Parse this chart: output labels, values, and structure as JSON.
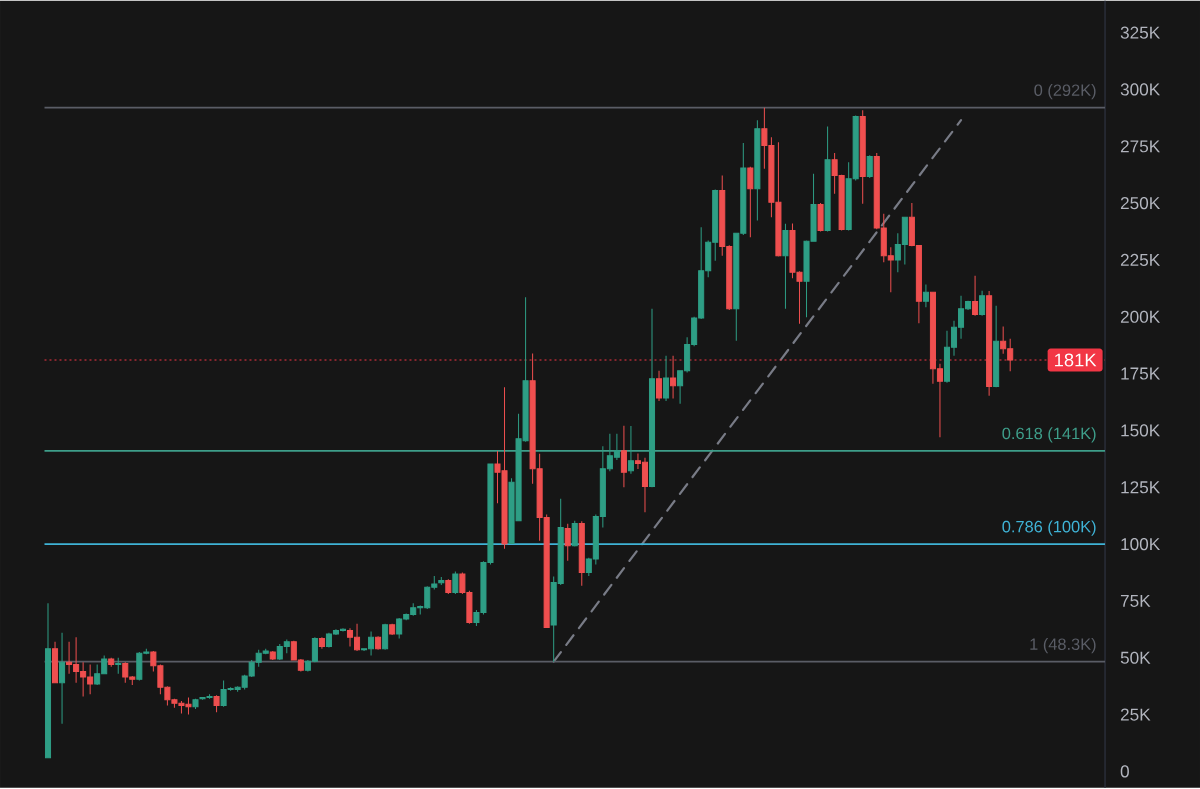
{
  "chart_data": {
    "type": "candlestick",
    "categories": [
      null,
      null,
      null,
      null,
      null,
      null,
      null,
      null,
      null,
      null,
      null,
      null,
      null,
      null,
      null,
      null,
      null,
      null,
      null,
      null,
      null,
      null,
      null,
      null,
      null,
      null,
      null,
      null,
      null,
      null,
      null,
      null,
      null,
      null,
      null,
      null,
      null,
      null,
      null,
      null,
      null,
      null,
      null,
      null,
      null,
      null,
      null,
      null,
      null,
      null,
      null,
      null,
      null,
      null,
      null,
      null,
      null,
      null,
      null,
      null,
      null,
      null,
      null,
      null,
      null,
      null,
      null,
      null,
      null,
      null,
      null,
      null,
      null,
      null,
      null,
      null,
      null,
      null,
      null,
      null,
      null,
      null,
      null,
      null,
      null,
      null,
      null,
      null,
      null,
      null,
      null,
      null,
      null,
      null,
      null,
      null,
      null,
      null,
      null,
      null,
      null,
      null,
      null,
      null,
      null,
      null,
      null,
      null,
      null,
      null,
      null,
      null,
      null,
      null,
      null,
      null,
      null,
      null,
      null,
      null,
      null,
      null,
      null,
      null,
      null,
      null,
      null,
      null,
      null,
      null,
      null,
      null,
      null,
      null,
      null,
      null,
      null,
      null,
      null,
      null,
      null,
      null,
      null,
      null,
      null,
      null,
      null,
      null,
      null,
      null,
      null
    ],
    "ohlc": [
      [
        6,
        74,
        6,
        54
      ],
      [
        54,
        57,
        39,
        39
      ],
      [
        39,
        61,
        21,
        48
      ],
      [
        48,
        57,
        43,
        47
      ],
      [
        47,
        59,
        39,
        44
      ],
      [
        44,
        48,
        33,
        41.5
      ],
      [
        41.5,
        47,
        34,
        38.5
      ],
      [
        38.5,
        47,
        38,
        43
      ],
      [
        43,
        51,
        43,
        49.5
      ],
      [
        49.5,
        50,
        46,
        47
      ],
      [
        47,
        50,
        43,
        47.5
      ],
      [
        47.5,
        48,
        39,
        41.5
      ],
      [
        41.5,
        42,
        38,
        40.5
      ],
      [
        40.5,
        52.5,
        40,
        52
      ],
      [
        52,
        54,
        51.5,
        52.5
      ],
      [
        52.5,
        53,
        44,
        46.5
      ],
      [
        46.5,
        47,
        34,
        37
      ],
      [
        37,
        37.5,
        29,
        31.5
      ],
      [
        31.5,
        32,
        28,
        30
      ],
      [
        30,
        31,
        25.5,
        29
      ],
      [
        29.5,
        32.5,
        25,
        28.5
      ],
      [
        28.5,
        32,
        27.5,
        31.5
      ],
      [
        32,
        32.5,
        31.5,
        32.5
      ],
      [
        32.5,
        34,
        32,
        33
      ],
      [
        33,
        33.5,
        26,
        29
      ],
      [
        29,
        40,
        28.5,
        36
      ],
      [
        36,
        37,
        35.5,
        36.5
      ],
      [
        36,
        37.5,
        35,
        37
      ],
      [
        37,
        42.5,
        36,
        42
      ],
      [
        42,
        49,
        41.5,
        48
      ],
      [
        48,
        53.5,
        46,
        52
      ],
      [
        52,
        54,
        51.5,
        53
      ],
      [
        52.5,
        53,
        49,
        49.5
      ],
      [
        49.5,
        56,
        49,
        55
      ],
      [
        55,
        58,
        52,
        57
      ],
      [
        57,
        57.5,
        49,
        49
      ],
      [
        49,
        49.5,
        44,
        44.5
      ],
      [
        44.5,
        49,
        44,
        48.5
      ],
      [
        48.5,
        59,
        48,
        58.5
      ],
      [
        58.5,
        59,
        54,
        55
      ],
      [
        55,
        61,
        54.5,
        60.5
      ],
      [
        60.5,
        62.5,
        60,
        62
      ],
      [
        62,
        63,
        61.5,
        62.5
      ],
      [
        62,
        63,
        55,
        59
      ],
      [
        59,
        65,
        53,
        53.5
      ],
      [
        53.5,
        54,
        53,
        54
      ],
      [
        54,
        61.5,
        51,
        59
      ],
      [
        59,
        59.5,
        53.5,
        54
      ],
      [
        54,
        65,
        53.5,
        64.5
      ],
      [
        64.5,
        65,
        60,
        60.5
      ],
      [
        60.5,
        67.5,
        58.5,
        67
      ],
      [
        67,
        69.5,
        66.5,
        69
      ],
      [
        69,
        74,
        68.5,
        72
      ],
      [
        72,
        73,
        69,
        72.5
      ],
      [
        72,
        81.5,
        71.5,
        81
      ],
      [
        81,
        86,
        80,
        82.5
      ],
      [
        83,
        85.5,
        82,
        84
      ],
      [
        84,
        84.5,
        78,
        78.7
      ],
      [
        78.7,
        88,
        78,
        86.8
      ],
      [
        86.8,
        87.5,
        78,
        78.7
      ],
      [
        78.7,
        79.5,
        65,
        65.5
      ],
      [
        65.5,
        71,
        64,
        69.9
      ],
      [
        69.9,
        92.5,
        69,
        91.9
      ],
      [
        91.9,
        135.5,
        91,
        135.2
      ],
      [
        135.2,
        141,
        118,
        131.6
      ],
      [
        132.3,
        169,
        98,
        100
      ],
      [
        100.3,
        129,
        100,
        127.2
      ],
      [
        110.3,
        157.3,
        110,
        146.3
      ],
      [
        145.5,
        208.6,
        145,
        171.9
      ],
      [
        171.9,
        183.9,
        126.5,
        133.1
      ],
      [
        133.1,
        139.7,
        101.5,
        111.7
      ],
      [
        111.7,
        113,
        63.3,
        63.3
      ],
      [
        64.4,
        85.7,
        48.3,
        83.1
      ],
      [
        82.7,
        119.9,
        82,
        107.3
      ],
      [
        106.9,
        109,
        92.7,
        99.3
      ],
      [
        99.3,
        110.3,
        99,
        109.1
      ],
      [
        109.1,
        110,
        81.7,
        87.5
      ],
      [
        87.5,
        94,
        86,
        93.4
      ],
      [
        93.4,
        113,
        91,
        112.1
      ],
      [
        112.1,
        143,
        107.3,
        133.1
      ],
      [
        133.1,
        148.5,
        132,
        138.9
      ],
      [
        138.2,
        148.5,
        137,
        141.1
      ],
      [
        141.1,
        152.1,
        125,
        131.6
      ],
      [
        132.3,
        152,
        131,
        136.7
      ],
      [
        136.7,
        139.9,
        133,
        135.5
      ],
      [
        136,
        138,
        114,
        125.3
      ],
      [
        125.3,
        203.5,
        125,
        172.7
      ],
      [
        172.7,
        176.3,
        163,
        164.3
      ],
      [
        164.3,
        182.9,
        163,
        173.1
      ],
      [
        173.1,
        182.9,
        164,
        169.7
      ],
      [
        169.7,
        176.5,
        161.7,
        176.3
      ],
      [
        176.3,
        191,
        175.5,
        187.8
      ],
      [
        187.8,
        200,
        187,
        199.5
      ],
      [
        199.5,
        239.4,
        199,
        220.3
      ],
      [
        220.3,
        233.5,
        217.4,
        232.8
      ],
      [
        232.8,
        256,
        224.7,
        255.5
      ],
      [
        255.5,
        262.1,
        226.9,
        230.9
      ],
      [
        230.9,
        231.5,
        203,
        203.5
      ],
      [
        203.5,
        237,
        189.5,
        236.8
      ],
      [
        236.8,
        276.4,
        236,
        265.5
      ],
      [
        265.5,
        266,
        235,
        256.3
      ],
      [
        256.3,
        286.4,
        242.3,
        282.7
      ],
      [
        282.7,
        292,
        265.1,
        275.4
      ],
      [
        275.4,
        279,
        243.8,
        250.4
      ],
      [
        250.4,
        276.8,
        226.5,
        226.9
      ],
      [
        226.9,
        240.9,
        203.5,
        237.9
      ],
      [
        237.9,
        241,
        217,
        219.6
      ],
      [
        219.6,
        220,
        196.9,
        215.6
      ],
      [
        215.6,
        233.5,
        199.8,
        233.2
      ],
      [
        233.2,
        262.9,
        233,
        249.4
      ],
      [
        249.4,
        250,
        237.5,
        237.9
      ],
      [
        237.9,
        283.7,
        237.5,
        269.1
      ],
      [
        269.1,
        272,
        254.1,
        262.2
      ],
      [
        262.2,
        262.5,
        238,
        238.4
      ],
      [
        238.4,
        268,
        238,
        260.7
      ],
      [
        260.7,
        288.5,
        260,
        288.1
      ],
      [
        288.1,
        290.8,
        249.7,
        261.7
      ],
      [
        261.7,
        271,
        261,
        270.5
      ],
      [
        270.5,
        272,
        238.5,
        239.1
      ],
      [
        239.1,
        245.3,
        224,
        226.9
      ],
      [
        226.9,
        230.6,
        210.8,
        225
      ],
      [
        225,
        236.8,
        219.6,
        231.8
      ],
      [
        231.8,
        244,
        223,
        243.8
      ],
      [
        243.8,
        250,
        231,
        231.4
      ],
      [
        231.4,
        231.5,
        197.1,
        206.8
      ],
      [
        206.8,
        214.2,
        204.2,
        210.8
      ],
      [
        210.8,
        211,
        170.5,
        177.1
      ],
      [
        177.1,
        179.3,
        147,
        171.6
      ],
      [
        171.6,
        193.9,
        171,
        186.6
      ],
      [
        186.6,
        198.3,
        182.9,
        195.4
      ],
      [
        195.4,
        209.3,
        190.3,
        203.5
      ],
      [
        203.5,
        207,
        203,
        206.7
      ],
      [
        206.7,
        218.1,
        200.5,
        201
      ],
      [
        201,
        211.5,
        200.5,
        209.3
      ],
      [
        209.3,
        211.3,
        165.3,
        169.3
      ],
      [
        169.3,
        204.9,
        169,
        189.2
      ],
      [
        189.2,
        195.7,
        183.7,
        185.9
      ],
      [
        185.9,
        190.3,
        176,
        181
      ],
      null,
      null,
      null,
      null,
      null,
      null,
      null,
      null,
      null,
      null,
      null,
      null,
      null
    ],
    "colors": [
      "#2e9e85",
      "#ef4f4f",
      "#2e9e85",
      "#ef4f4f",
      "#ef4f4f",
      "#ef4f4f",
      "#ef4f4f",
      "#2e9e85",
      "#2e9e85",
      "#ef4f4f",
      "#2e9e85",
      "#ef4f4f",
      "#ef4f4f",
      "#2e9e85",
      "#2e9e85",
      "#ef4f4f",
      "#ef4f4f",
      "#ef4f4f",
      "#ef4f4f",
      "#ef4f4f",
      "#ef4f4f",
      "#2e9e85",
      "#2e9e85",
      "#2e9e85",
      "#ef4f4f",
      "#2e9e85",
      "#2e9e85",
      "#2e9e85",
      "#2e9e85",
      "#2e9e85",
      "#2e9e85",
      "#2e9e85",
      "#ef4f4f",
      "#2e9e85",
      "#2e9e85",
      "#ef4f4f",
      "#ef4f4f",
      "#2e9e85",
      "#2e9e85",
      "#ef4f4f",
      "#2e9e85",
      "#2e9e85",
      "#2e9e85",
      "#ef4f4f",
      "#ef4f4f",
      "#2e9e85",
      "#2e9e85",
      "#ef4f4f",
      "#2e9e85",
      "#ef4f4f",
      "#2e9e85",
      "#2e9e85",
      "#2e9e85",
      "#2e9e85",
      "#2e9e85",
      "#2e9e85",
      "#2e9e85",
      "#ef4f4f",
      "#2e9e85",
      "#ef4f4f",
      "#ef4f4f",
      "#2e9e85",
      "#2e9e85",
      "#2e9e85",
      "#ef4f4f",
      "#ef4f4f",
      "#2e9e85",
      "#2e9e85",
      "#2e9e85",
      "#ef4f4f",
      "#ef4f4f",
      "#ef4f4f",
      "#2e9e85",
      "#2e9e85",
      "#ef4f4f",
      "#2e9e85",
      "#ef4f4f",
      "#2e9e85",
      "#2e9e85",
      "#2e9e85",
      "#2e9e85",
      "#2e9e85",
      "#ef4f4f",
      "#2e9e85",
      "#ef4f4f",
      "#ef4f4f",
      "#2e9e85",
      "#ef4f4f",
      "#2e9e85",
      "#ef4f4f",
      "#2e9e85",
      "#2e9e85",
      "#2e9e85",
      "#2e9e85",
      "#2e9e85",
      "#2e9e85",
      "#ef4f4f",
      "#ef4f4f",
      "#2e9e85",
      "#2e9e85",
      "#ef4f4f",
      "#2e9e85",
      "#ef4f4f",
      "#ef4f4f",
      "#ef4f4f",
      "#2e9e85",
      "#ef4f4f",
      "#ef4f4f",
      "#2e9e85",
      "#2e9e85",
      "#ef4f4f",
      "#2e9e85",
      "#ef4f4f",
      "#ef4f4f",
      "#2e9e85",
      "#2e9e85",
      "#ef4f4f",
      "#2e9e85",
      "#ef4f4f",
      "#ef4f4f",
      "#ef4f4f",
      "#2e9e85",
      "#2e9e85",
      "#ef4f4f",
      "#ef4f4f",
      "#2e9e85",
      "#ef4f4f",
      "#ef4f4f",
      "#2e9e85",
      "#2e9e85",
      "#2e9e85",
      "#2e9e85",
      "#ef4f4f",
      "#2e9e85",
      "#ef4f4f",
      "#2e9e85",
      "#ef4f4f",
      "#ef4f4f",
      null,
      null,
      null,
      null,
      null,
      null,
      null,
      null,
      null,
      null,
      null,
      null,
      null
    ],
    "series": [
      {
        "type": "line",
        "color": "#787b86",
        "line_style": "dashed",
        "values": [
          null,
          null,
          null,
          null,
          null,
          null,
          null,
          null,
          null,
          null,
          null,
          null,
          null,
          null,
          null,
          null,
          null,
          null,
          null,
          null,
          null,
          null,
          null,
          null,
          null,
          null,
          null,
          null,
          null,
          null,
          null,
          null,
          null,
          null,
          null,
          null,
          null,
          null,
          null,
          null,
          null,
          null,
          null,
          null,
          null,
          null,
          null,
          null,
          null,
          null,
          null,
          null,
          null,
          null,
          null,
          null,
          null,
          null,
          null,
          null,
          null,
          null,
          null,
          null,
          null,
          null,
          null,
          null,
          null,
          null,
          null,
          null,
          48.3,
          null,
          null,
          null,
          null,
          null,
          null,
          null,
          null,
          null,
          null,
          null,
          null,
          null,
          null,
          null,
          null,
          null,
          null,
          null,
          null,
          null,
          null,
          null,
          null,
          null,
          null,
          null,
          null,
          null,
          null,
          null,
          null,
          null,
          null,
          null,
          null,
          null,
          null,
          null,
          null,
          null,
          null,
          null,
          null,
          null,
          null,
          null,
          null,
          null,
          null,
          null,
          null,
          null,
          null,
          null,
          null,
          null,
          286.5,
          null,
          null,
          null,
          null,
          null,
          null,
          null,
          null,
          null,
          null,
          null,
          null,
          null,
          null,
          null,
          null,
          null,
          null,
          null,
          null
        ]
      }
    ],
    "ref_lines": [
      {
        "axis": "y",
        "value": 292,
        "label": "0 (292K)",
        "color": "#5a5d66",
        "line_style": "solid"
      },
      {
        "axis": "y",
        "value": 141,
        "label": "0.618 (141K)",
        "color": "#3e9e8a",
        "line_style": "solid"
      },
      {
        "axis": "y",
        "value": 100,
        "label": "0.786 (100K)",
        "color": "#3fb3d6",
        "line_style": "solid"
      },
      {
        "axis": "y",
        "value": 48.3,
        "label": "1 (48.3K)",
        "color": "#5a5d66",
        "line_style": "solid"
      },
      {
        "axis": "y",
        "value": 181,
        "label": "181K",
        "color": "#f23645",
        "line_style": "dotted"
      }
    ],
    "ylim": [
      -7.2,
      339
    ],
    "yticks": [
      0,
      {
        "value": 25,
        "label": "25K"
      },
      {
        "value": 50,
        "label": "50K"
      },
      {
        "value": 75,
        "label": "75K"
      },
      {
        "value": 100,
        "label": "100K"
      },
      {
        "value": 125,
        "label": "125K"
      },
      {
        "value": 150,
        "label": "150K"
      },
      {
        "value": 175,
        "label": "175K"
      },
      {
        "value": 200,
        "label": "200K"
      },
      {
        "value": 225,
        "label": "225K"
      },
      {
        "value": 250,
        "label": "250K"
      },
      {
        "value": 275,
        "label": "275K"
      },
      {
        "value": 300,
        "label": "300K"
      },
      {
        "value": 325,
        "label": "325K"
      }
    ],
    "tick_labels": "y",
    "grid": false
  }
}
